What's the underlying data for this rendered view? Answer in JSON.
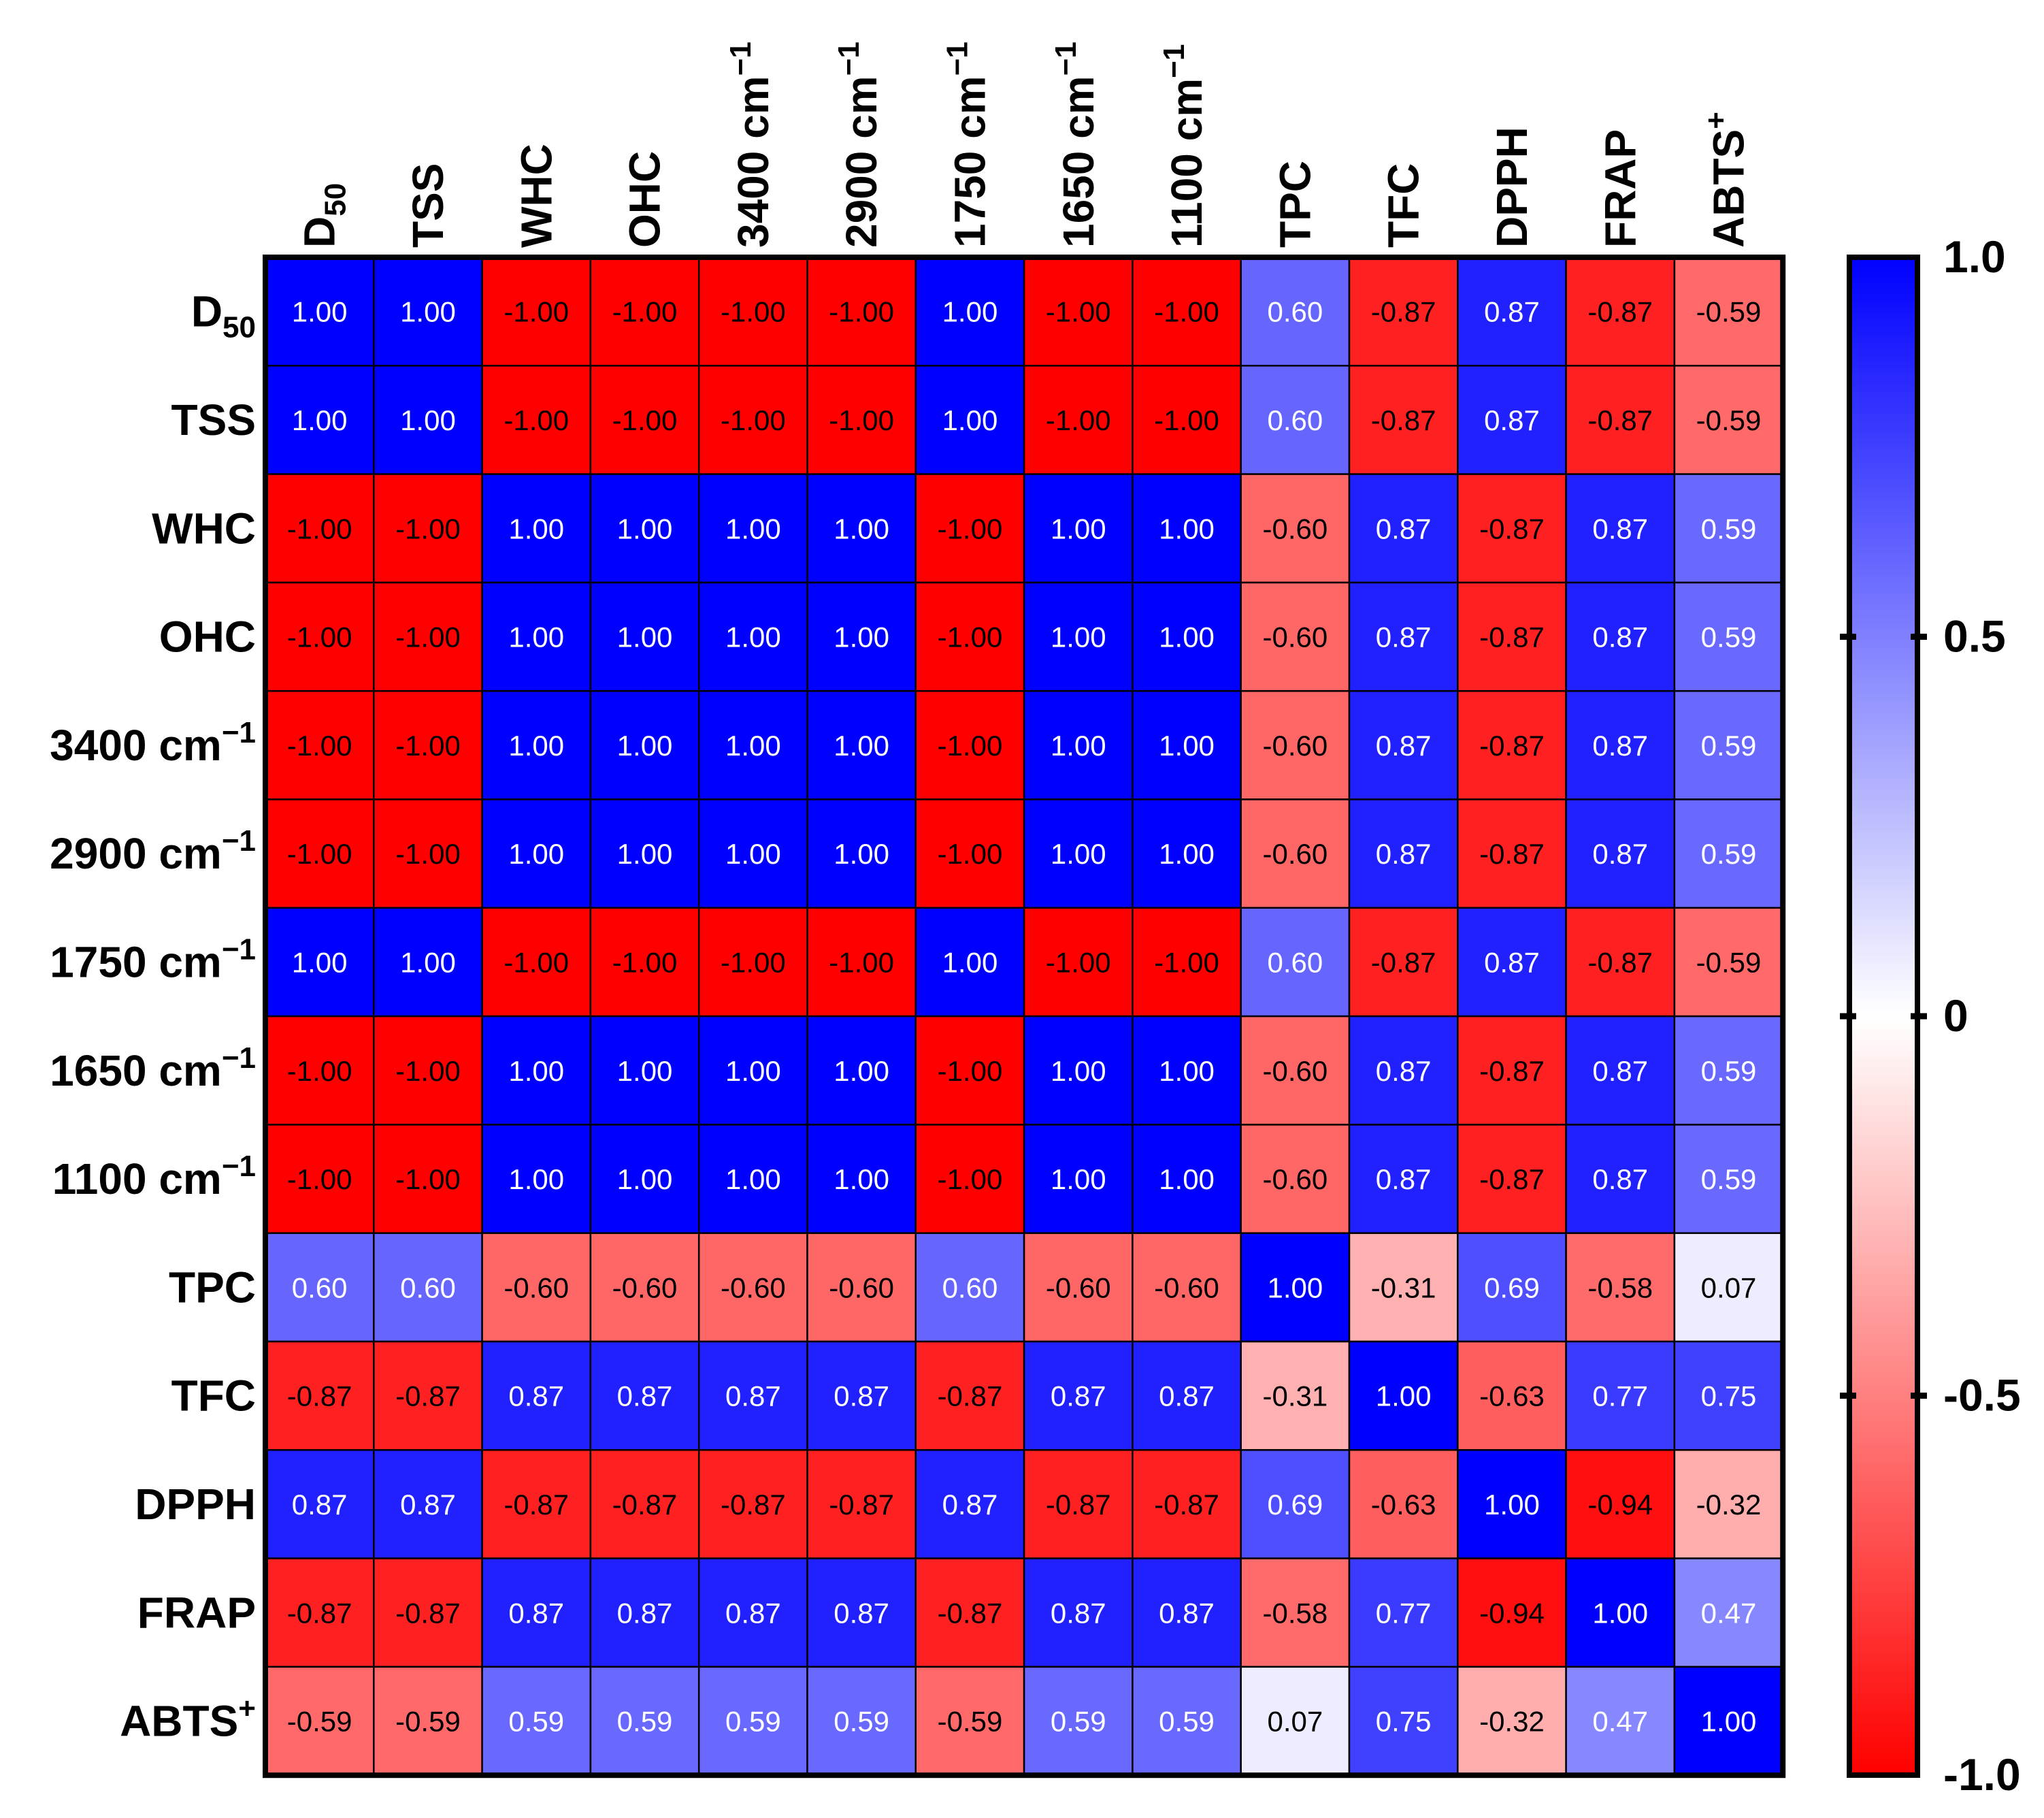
{
  "chart_data": {
    "type": "heatmap",
    "title": "",
    "xlabel": "",
    "ylabel": "",
    "variables": [
      {
        "base": "D",
        "sub": "50",
        "sup": ""
      },
      {
        "base": "TSS",
        "sub": "",
        "sup": ""
      },
      {
        "base": "WHC",
        "sub": "",
        "sup": ""
      },
      {
        "base": "OHC",
        "sub": "",
        "sup": ""
      },
      {
        "base": "3400 cm",
        "sub": "",
        "sup": "−1"
      },
      {
        "base": "2900 cm",
        "sub": "",
        "sup": "−1"
      },
      {
        "base": "1750 cm",
        "sub": "",
        "sup": "−1"
      },
      {
        "base": "1650 cm",
        "sub": "",
        "sup": "−1"
      },
      {
        "base": "1100 cm",
        "sub": "",
        "sup": "−1"
      },
      {
        "base": "TPC",
        "sub": "",
        "sup": ""
      },
      {
        "base": "TFC",
        "sub": "",
        "sup": ""
      },
      {
        "base": "DPPH",
        "sub": "",
        "sup": ""
      },
      {
        "base": "FRAP",
        "sub": "",
        "sup": ""
      },
      {
        "base": "ABTS",
        "sub": "",
        "sup": "+"
      }
    ],
    "matrix": [
      [
        1.0,
        1.0,
        -1.0,
        -1.0,
        -1.0,
        -1.0,
        1.0,
        -1.0,
        -1.0,
        0.6,
        -0.87,
        0.87,
        -0.87,
        -0.59
      ],
      [
        1.0,
        1.0,
        -1.0,
        -1.0,
        -1.0,
        -1.0,
        1.0,
        -1.0,
        -1.0,
        0.6,
        -0.87,
        0.87,
        -0.87,
        -0.59
      ],
      [
        -1.0,
        -1.0,
        1.0,
        1.0,
        1.0,
        1.0,
        -1.0,
        1.0,
        1.0,
        -0.6,
        0.87,
        -0.87,
        0.87,
        0.59
      ],
      [
        -1.0,
        -1.0,
        1.0,
        1.0,
        1.0,
        1.0,
        -1.0,
        1.0,
        1.0,
        -0.6,
        0.87,
        -0.87,
        0.87,
        0.59
      ],
      [
        -1.0,
        -1.0,
        1.0,
        1.0,
        1.0,
        1.0,
        -1.0,
        1.0,
        1.0,
        -0.6,
        0.87,
        -0.87,
        0.87,
        0.59
      ],
      [
        -1.0,
        -1.0,
        1.0,
        1.0,
        1.0,
        1.0,
        -1.0,
        1.0,
        1.0,
        -0.6,
        0.87,
        -0.87,
        0.87,
        0.59
      ],
      [
        1.0,
        1.0,
        -1.0,
        -1.0,
        -1.0,
        -1.0,
        1.0,
        -1.0,
        -1.0,
        0.6,
        -0.87,
        0.87,
        -0.87,
        -0.59
      ],
      [
        -1.0,
        -1.0,
        1.0,
        1.0,
        1.0,
        1.0,
        -1.0,
        1.0,
        1.0,
        -0.6,
        0.87,
        -0.87,
        0.87,
        0.59
      ],
      [
        -1.0,
        -1.0,
        1.0,
        1.0,
        1.0,
        1.0,
        -1.0,
        1.0,
        1.0,
        -0.6,
        0.87,
        -0.87,
        0.87,
        0.59
      ],
      [
        0.6,
        0.6,
        -0.6,
        -0.6,
        -0.6,
        -0.6,
        0.6,
        -0.6,
        -0.6,
        1.0,
        -0.31,
        0.69,
        -0.58,
        0.07
      ],
      [
        -0.87,
        -0.87,
        0.87,
        0.87,
        0.87,
        0.87,
        -0.87,
        0.87,
        0.87,
        -0.31,
        1.0,
        -0.63,
        0.77,
        0.75
      ],
      [
        0.87,
        0.87,
        -0.87,
        -0.87,
        -0.87,
        -0.87,
        0.87,
        -0.87,
        -0.87,
        0.69,
        -0.63,
        1.0,
        -0.94,
        -0.32
      ],
      [
        -0.87,
        -0.87,
        0.87,
        0.87,
        0.87,
        0.87,
        -0.87,
        0.87,
        0.87,
        -0.58,
        0.77,
        -0.94,
        1.0,
        0.47
      ],
      [
        -0.59,
        -0.59,
        0.59,
        0.59,
        0.59,
        0.59,
        -0.59,
        0.59,
        0.59,
        0.07,
        0.75,
        -0.32,
        0.47,
        1.0
      ]
    ],
    "value_format": "2 decimals",
    "colorscale": {
      "min": -1.0,
      "max": 1.0,
      "colors": {
        "negative": "#ff0000",
        "zero": "#ffffff",
        "positive": "#0000ff"
      },
      "ticks": [
        {
          "value": 1.0,
          "label": "1.0"
        },
        {
          "value": 0.5,
          "label": "0.5"
        },
        {
          "value": 0,
          "label": "0"
        },
        {
          "value": -0.5,
          "label": "-0.5"
        },
        {
          "value": -1.0,
          "label": "-1.0"
        }
      ],
      "position": "right"
    },
    "cell_border_color": "#000000",
    "grid": true,
    "legend": "colorbar-right"
  }
}
